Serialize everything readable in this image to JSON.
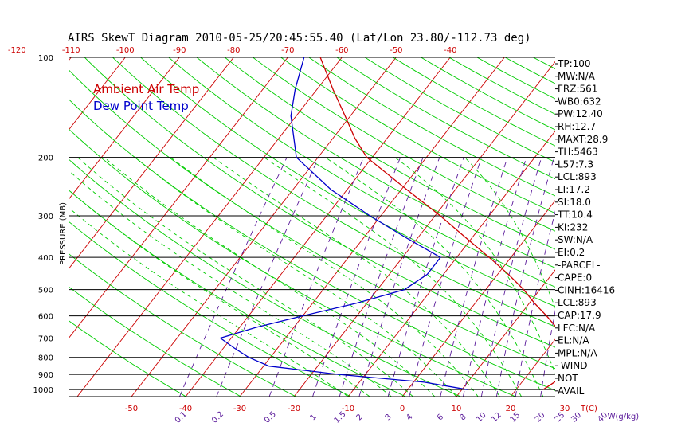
{
  "chart_data": {
    "type": "line",
    "title": "AIRS SkewT Diagram 2010-05-25/20:45:55.40 (Lat/Lon 23.80/-112.73 deg)",
    "ylabel": "PRESSURE (MB)",
    "y_scale": "log",
    "ylim": [
      1050,
      100
    ],
    "pressure_ticks": [
      100,
      200,
      300,
      400,
      500,
      600,
      700,
      800,
      900,
      1000
    ],
    "pressure_tick_labels": [
      "100",
      "200",
      "300",
      "400",
      "500",
      "600",
      "700",
      "800",
      "900",
      "1000"
    ],
    "top_temp_ticks": [
      -120,
      -110,
      -100,
      -90,
      -80,
      -70,
      -60,
      -50,
      -40
    ],
    "top_temp_labels": [
      "-120",
      "-110",
      "-100",
      "-90",
      "-80",
      "-70",
      "-60",
      "-50",
      "-40"
    ],
    "bottom_temp_ticks": [
      -50,
      -40,
      -30,
      -20,
      -10,
      0,
      10,
      20,
      30
    ],
    "bottom_temp_labels": [
      "-50",
      "-40",
      "-30",
      "-20",
      "-10",
      "0",
      "10",
      "20",
      "30"
    ],
    "bottom_unit_label": "T(C)",
    "mixing_ratio_ticks": [
      0.1,
      0.2,
      0.5,
      1,
      1.5,
      2,
      3,
      4,
      6,
      8,
      10,
      12,
      15,
      20,
      25,
      30,
      40
    ],
    "mixing_ratio_labels": [
      "0.1",
      "0.2",
      "0.5",
      "1",
      "1.5",
      "2",
      "3",
      "4",
      "6",
      "8",
      "10",
      "12",
      "15",
      "20",
      "25",
      "30",
      "40"
    ],
    "mixing_ratio_unit": "W(g/kg)",
    "series": [
      {
        "name": "Ambient Air Temp",
        "color": "#cc0000",
        "points": [
          [
            1000,
            25
          ],
          [
            950,
            26
          ],
          [
            900,
            27
          ],
          [
            850,
            27
          ],
          [
            800,
            26
          ],
          [
            750,
            24.5
          ],
          [
            700,
            22
          ],
          [
            650,
            18.5
          ],
          [
            600,
            15
          ],
          [
            550,
            11
          ],
          [
            500,
            7
          ],
          [
            450,
            2
          ],
          [
            400,
            -4
          ],
          [
            350,
            -11
          ],
          [
            300,
            -19
          ],
          [
            250,
            -29
          ],
          [
            200,
            -41
          ],
          [
            175,
            -46
          ],
          [
            150,
            -51
          ],
          [
            125,
            -57
          ],
          [
            100,
            -64
          ]
        ]
      },
      {
        "name": "Dew Point Temp",
        "color": "#0000cc",
        "points": [
          [
            1000,
            11
          ],
          [
            950,
            2
          ],
          [
            900,
            -15
          ],
          [
            850,
            -29
          ],
          [
            800,
            -34
          ],
          [
            750,
            -38
          ],
          [
            700,
            -42
          ],
          [
            650,
            -37
          ],
          [
            600,
            -30
          ],
          [
            550,
            -22
          ],
          [
            500,
            -15
          ],
          [
            450,
            -13
          ],
          [
            400,
            -13
          ],
          [
            350,
            -22
          ],
          [
            300,
            -32
          ],
          [
            250,
            -43
          ],
          [
            200,
            -54
          ],
          [
            150,
            -61
          ],
          [
            125,
            -64
          ],
          [
            100,
            -67
          ]
        ]
      }
    ]
  },
  "indices": [
    "TP:100",
    "MW:N/A",
    "FRZ:561",
    "WB0:632",
    "PW:12.40",
    "RH:12.7",
    "MAXT:28.9",
    "TH:5463",
    "L57:7.3",
    "LCL:893",
    "LI:17.2",
    "SI:18.0",
    "TT:10.4",
    "KI:232",
    "SW:N/A",
    "EI:0.2",
    "-PARCEL-",
    "CAPE:0",
    "CINH:16416",
    "LCL:893",
    "CAP:17.9",
    "LFC:N/A",
    "EL:N/A",
    "MPL:N/A",
    "-WIND-",
    "NOT",
    "AVAIL"
  ],
  "colors": {
    "isotherm": "#cc0000",
    "dry_adiabat": "#00cc00",
    "moist_adiabat": "#00cc00",
    "mixing_ratio": "#5a1a9a",
    "isobar": "#000000"
  }
}
